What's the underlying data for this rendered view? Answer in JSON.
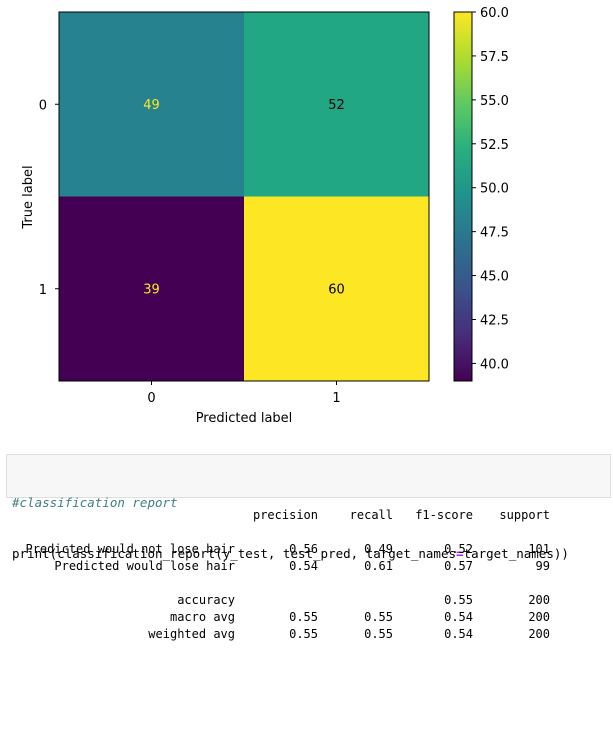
{
  "chart_data": {
    "type": "heatmap",
    "title": "",
    "xlabel": "Predicted label",
    "ylabel": "True label",
    "x_categories": [
      "0",
      "1"
    ],
    "y_categories": [
      "0",
      "1"
    ],
    "values": [
      [
        49,
        52
      ],
      [
        39,
        60
      ]
    ],
    "colorbar": {
      "colormap": "viridis",
      "min": 39,
      "max": 60,
      "ticks": [
        "40.0",
        "42.5",
        "45.0",
        "47.5",
        "50.0",
        "52.5",
        "55.0",
        "57.5",
        "60.0"
      ]
    },
    "cell_colors": [
      [
        "#26828e",
        "#22a784"
      ],
      [
        "#440154",
        "#fde725"
      ]
    ],
    "text_colors": [
      [
        "#fde725",
        "#000000"
      ],
      [
        "#fde725",
        "#000000"
      ]
    ]
  },
  "code": {
    "comment": "#classification report",
    "line_parts": [
      "print(classification_report(y_test, test_pred, target_names",
      "=",
      "target_names))"
    ]
  },
  "report": {
    "header": [
      "precision",
      "recall",
      "f1-score",
      "support"
    ],
    "rows": [
      {
        "label": "Predicted would not lose hair",
        "precision": "0.56",
        "recall": "0.49",
        "f1": "0.52",
        "support": "101"
      },
      {
        "label": "Predicted would lose hair",
        "precision": "0.54",
        "recall": "0.61",
        "f1": "0.57",
        "support": "99"
      }
    ],
    "summary": [
      {
        "label": "accuracy",
        "precision": "",
        "recall": "",
        "f1": "0.55",
        "support": "200"
      },
      {
        "label": "macro avg",
        "precision": "0.55",
        "recall": "0.55",
        "f1": "0.54",
        "support": "200"
      },
      {
        "label": "weighted avg",
        "precision": "0.55",
        "recall": "0.55",
        "f1": "0.54",
        "support": "200"
      }
    ]
  }
}
